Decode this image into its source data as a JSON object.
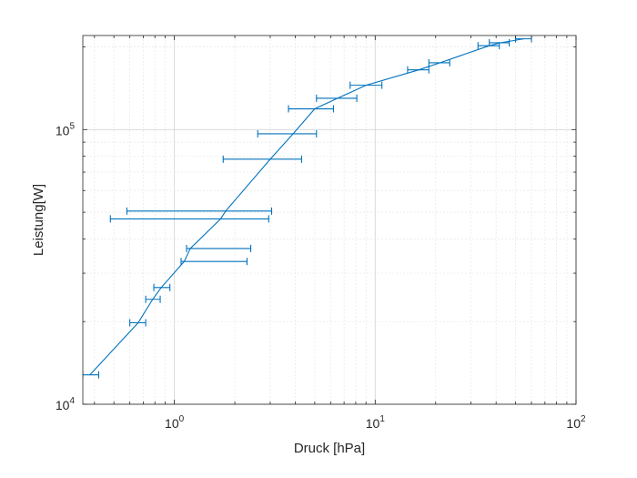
{
  "chart_data": {
    "type": "line",
    "xlabel": "Druck [hPa]",
    "ylabel": "Leistung[W]",
    "x_scale": "log",
    "y_scale": "log",
    "xlim": [
      0.35,
      100
    ],
    "ylim": [
      10000,
      220000
    ],
    "grid": true,
    "x_ticks": [
      {
        "base": "10",
        "exp": "0",
        "value": 1
      },
      {
        "base": "10",
        "exp": "1",
        "value": 10
      },
      {
        "base": "10",
        "exp": "2",
        "value": 100
      }
    ],
    "y_ticks": [
      {
        "base": "10",
        "exp": "4",
        "value": 10000
      },
      {
        "base": "10",
        "exp": "5",
        "value": 100000
      }
    ],
    "series": [
      {
        "color": "#0072BD",
        "points": [
          {
            "x": 0.38,
            "y": 12800,
            "xerr": [
              0.35,
              0.42
            ]
          },
          {
            "x": 0.66,
            "y": 19800,
            "xerr": [
              0.6,
              0.72
            ]
          },
          {
            "x": 0.78,
            "y": 24100,
            "xerr": [
              0.72,
              0.85
            ]
          },
          {
            "x": 0.86,
            "y": 26600,
            "xerr": [
              0.79,
              0.95
            ]
          },
          {
            "x": 1.12,
            "y": 33100,
            "xerr": [
              1.08,
              2.3
            ]
          },
          {
            "x": 1.2,
            "y": 36900,
            "xerr": [
              1.15,
              2.4
            ]
          },
          {
            "x": 1.7,
            "y": 47300,
            "xerr": [
              0.48,
              2.95
            ]
          },
          {
            "x": 1.8,
            "y": 50500,
            "xerr": [
              0.58,
              3.05
            ]
          },
          {
            "x": 3.0,
            "y": 78000,
            "xerr": [
              1.75,
              4.3
            ]
          },
          {
            "x": 3.9,
            "y": 96500,
            "xerr": [
              2.6,
              5.1
            ]
          },
          {
            "x": 5.0,
            "y": 119000,
            "xerr": [
              3.7,
              6.2
            ]
          },
          {
            "x": 6.5,
            "y": 130000,
            "xerr": [
              5.1,
              8.1
            ]
          },
          {
            "x": 9.0,
            "y": 145000,
            "xerr": [
              7.5,
              10.8
            ]
          },
          {
            "x": 16.5,
            "y": 165000,
            "xerr": [
              14.5,
              18.5
            ]
          },
          {
            "x": 21.0,
            "y": 175000,
            "xerr": [
              18.5,
              23.5
            ]
          },
          {
            "x": 37.0,
            "y": 202000,
            "xerr": [
              32.5,
              41.5
            ]
          },
          {
            "x": 42.0,
            "y": 207000,
            "xerr": [
              37.0,
              46.5
            ]
          },
          {
            "x": 55.0,
            "y": 214000,
            "xerr": [
              50.0,
              60.0
            ]
          }
        ]
      }
    ]
  }
}
